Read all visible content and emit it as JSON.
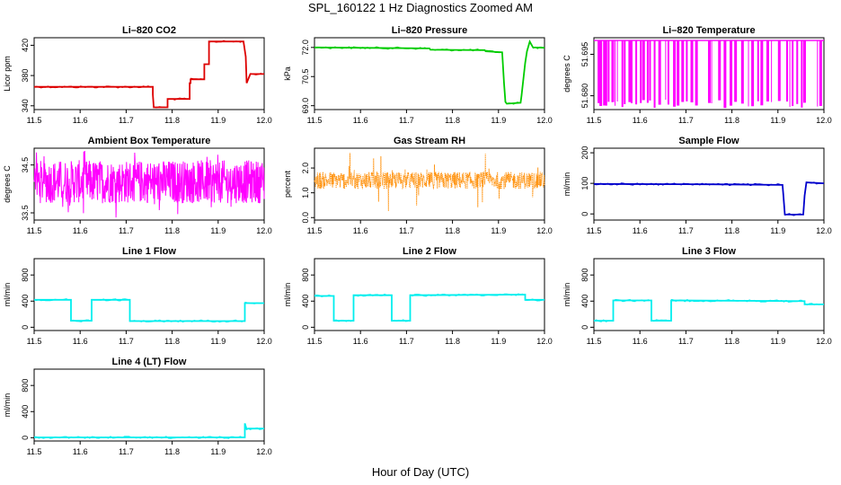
{
  "page": {
    "title": "SPL_160122  1 Hz Diagnostics Zoomed AM",
    "xlabel": "Hour of Day (UTC)"
  },
  "chart_data": [
    {
      "type": "line",
      "title": "Li–820 CO2",
      "ylabel": "Licor ppm",
      "color": "#dd0000",
      "xlim": [
        11.5,
        12.0
      ],
      "ylim": [
        335,
        430
      ],
      "xticks": [
        "11.5",
        "11.6",
        "11.7",
        "11.8",
        "11.9",
        "12.0"
      ],
      "yticks": [
        {
          "v": 340,
          "t": "340"
        },
        {
          "v": 380,
          "t": "380"
        },
        {
          "v": 420,
          "t": "420"
        }
      ],
      "series": [
        {
          "x": [
            11.5,
            11.758,
            11.758,
            11.76,
            11.79,
            11.79,
            11.8,
            11.8,
            11.838,
            11.838,
            11.84,
            11.84,
            11.87,
            11.87,
            11.88,
            11.88,
            11.955,
            11.96,
            11.962,
            11.97,
            12.0
          ],
          "y": [
            365,
            365,
            355,
            338,
            338,
            349,
            349,
            349,
            349,
            370,
            370,
            375,
            375,
            395,
            395,
            425,
            425,
            405,
            370,
            382,
            382
          ]
        }
      ]
    },
    {
      "type": "line",
      "title": "Li–820 Pressure",
      "ylabel": "kPa",
      "color": "#00cc00",
      "xlim": [
        11.5,
        12.0
      ],
      "ylim": [
        68.8,
        72.5
      ],
      "xticks": [
        "11.5",
        "11.6",
        "11.7",
        "11.8",
        "11.9",
        "12.0"
      ],
      "yticks": [
        {
          "v": 69.0,
          "t": "69.0"
        },
        {
          "v": 70.5,
          "t": "70.5"
        },
        {
          "v": 72.0,
          "t": "72.0"
        }
      ],
      "series": [
        {
          "x": [
            11.5,
            11.75,
            11.752,
            11.87,
            11.872,
            11.908,
            11.912,
            11.915,
            11.918,
            11.948,
            11.95,
            11.958,
            11.962,
            11.968,
            11.975,
            12.0
          ],
          "y": [
            72.0,
            71.95,
            71.88,
            71.86,
            71.8,
            71.75,
            70.2,
            69.2,
            69.1,
            69.15,
            69.5,
            71.2,
            71.8,
            72.3,
            72.0,
            71.98
          ]
        }
      ]
    },
    {
      "type": "line",
      "title": "Li–820 Temperature",
      "ylabel": "degrees C",
      "color": "#ff00ff",
      "xlim": [
        11.5,
        12.0
      ],
      "ylim": [
        51.675,
        51.701
      ],
      "xticks": [
        "11.5",
        "11.6",
        "11.7",
        "11.8",
        "11.9",
        "12.0"
      ],
      "yticks": [
        {
          "v": 51.68,
          "t": "51.680"
        },
        {
          "v": 51.695,
          "t": "51.695"
        }
      ],
      "baseline": 51.7,
      "dips": [
        11.508,
        11.512,
        11.52,
        11.525,
        11.53,
        11.538,
        11.545,
        11.55,
        11.56,
        11.565,
        11.575,
        11.58,
        11.59,
        11.6,
        11.605,
        11.615,
        11.62,
        11.63,
        11.64,
        11.655,
        11.66,
        11.672,
        11.68,
        11.69,
        11.7,
        11.71,
        11.72,
        11.748,
        11.755,
        11.77,
        11.782,
        11.795,
        11.805,
        11.82,
        11.835,
        11.842,
        11.855,
        11.862,
        11.875,
        11.885,
        11.9,
        11.918,
        11.925,
        11.93,
        11.94,
        11.95,
        11.955,
        11.985,
        11.99
      ]
    },
    {
      "type": "line",
      "title": "Ambient Box Temperature",
      "ylabel": "degrees C",
      "color": "#ff00ff",
      "xlim": [
        11.5,
        12.0
      ],
      "ylim": [
        33.35,
        34.85
      ],
      "xticks": [
        "11.5",
        "11.6",
        "11.7",
        "11.8",
        "11.9",
        "12.0"
      ],
      "yticks": [
        {
          "v": 33.5,
          "t": "33.5"
        },
        {
          "v": 34.5,
          "t": "34.5"
        }
      ],
      "band": {
        "low": 33.7,
        "high": 34.6,
        "min_spike": 33.4,
        "max_spike": 34.8
      }
    },
    {
      "type": "scatter",
      "title": "Gas Stream RH",
      "ylabel": "percent",
      "color": "#ff8c00",
      "xlim": [
        11.5,
        12.0
      ],
      "ylim": [
        -0.1,
        2.8
      ],
      "xticks": [
        "11.5",
        "11.6",
        "11.7",
        "11.8",
        "11.9",
        "12.0"
      ],
      "yticks": [
        {
          "v": 0.0,
          "t": "0.0"
        },
        {
          "v": 1.0,
          "t": "1.0"
        },
        {
          "v": 2.0,
          "t": "2.0"
        }
      ],
      "band": {
        "low": 1.15,
        "high": 1.85,
        "min_spike": 0.2,
        "max_spike": 2.7
      }
    },
    {
      "type": "line",
      "title": "Sample Flow",
      "ylabel": "ml/min",
      "color": "#0000cc",
      "xlim": [
        11.5,
        12.0
      ],
      "ylim": [
        -20,
        215
      ],
      "xticks": [
        "11.5",
        "11.6",
        "11.7",
        "11.8",
        "11.9",
        "12.0"
      ],
      "yticks": [
        {
          "v": 0,
          "t": "0"
        },
        {
          "v": 100,
          "t": "100"
        },
        {
          "v": 200,
          "t": "200"
        }
      ],
      "series": [
        {
          "x": [
            11.5,
            11.75,
            11.91,
            11.912,
            11.915,
            11.955,
            11.958,
            11.962,
            12.0
          ],
          "y": [
            98,
            97,
            95,
            60,
            -2,
            -2,
            60,
            103,
            100
          ]
        }
      ]
    },
    {
      "type": "line",
      "title": "Line 1 Flow",
      "ylabel": "ml/min",
      "color": "#00eeee",
      "xlim": [
        11.5,
        12.0
      ],
      "ylim": [
        -50,
        1050
      ],
      "xticks": [
        "11.5",
        "11.6",
        "11.7",
        "11.8",
        "11.9",
        "12.0"
      ],
      "yticks": [
        {
          "v": 0,
          "t": "0"
        },
        {
          "v": 400,
          "t": "400"
        },
        {
          "v": 800,
          "t": "800"
        }
      ],
      "series": [
        {
          "x": [
            11.5,
            11.58,
            11.58,
            11.625,
            11.625,
            11.708,
            11.708,
            11.958,
            11.958,
            12.0
          ],
          "y": [
            420,
            420,
            100,
            100,
            420,
            420,
            95,
            95,
            370,
            370
          ]
        }
      ]
    },
    {
      "type": "line",
      "title": "Line 2 Flow",
      "ylabel": "ml/min",
      "color": "#00eeee",
      "xlim": [
        11.5,
        12.0
      ],
      "ylim": [
        -50,
        1050
      ],
      "xticks": [
        "11.5",
        "11.6",
        "11.7",
        "11.8",
        "11.9",
        "12.0"
      ],
      "yticks": [
        {
          "v": 0,
          "t": "0"
        },
        {
          "v": 400,
          "t": "400"
        },
        {
          "v": 800,
          "t": "800"
        }
      ],
      "series": [
        {
          "x": [
            11.5,
            11.542,
            11.542,
            11.585,
            11.585,
            11.668,
            11.668,
            11.708,
            11.708,
            11.958,
            11.958,
            12.0
          ],
          "y": [
            480,
            480,
            100,
            100,
            490,
            490,
            100,
            100,
            490,
            500,
            420,
            420
          ]
        }
      ]
    },
    {
      "type": "line",
      "title": "Line 3 Flow",
      "ylabel": "ml/min",
      "color": "#00eeee",
      "xlim": [
        11.5,
        12.0
      ],
      "ylim": [
        -50,
        1050
      ],
      "xticks": [
        "11.5",
        "11.6",
        "11.7",
        "11.8",
        "11.9",
        "12.0"
      ],
      "yticks": [
        {
          "v": 0,
          "t": "0"
        },
        {
          "v": 400,
          "t": "400"
        },
        {
          "v": 800,
          "t": "800"
        }
      ],
      "series": [
        {
          "x": [
            11.5,
            11.542,
            11.542,
            11.625,
            11.625,
            11.668,
            11.668,
            11.958,
            11.958,
            12.0
          ],
          "y": [
            100,
            100,
            410,
            410,
            100,
            100,
            410,
            400,
            350,
            350
          ]
        }
      ]
    },
    {
      "type": "line",
      "title": "Line 4 (LT) Flow",
      "ylabel": "ml/min",
      "color": "#00eeee",
      "xlim": [
        11.5,
        12.0
      ],
      "ylim": [
        -50,
        1050
      ],
      "xticks": [
        "11.5",
        "11.6",
        "11.7",
        "11.8",
        "11.9",
        "12.0"
      ],
      "yticks": [
        {
          "v": 0,
          "t": "0"
        },
        {
          "v": 400,
          "t": "400"
        },
        {
          "v": 800,
          "t": "800"
        }
      ],
      "series": [
        {
          "x": [
            11.5,
            11.958,
            11.958,
            11.962,
            11.965,
            12.0
          ],
          "y": [
            5,
            5,
            220,
            130,
            140,
            140
          ]
        }
      ]
    }
  ]
}
